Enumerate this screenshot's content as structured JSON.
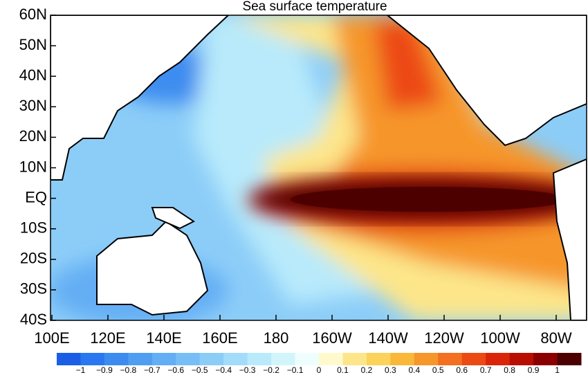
{
  "title": "Sea surface temperature",
  "y_axis": {
    "ticks": [
      "60N",
      "50N",
      "40N",
      "30N",
      "20N",
      "10N",
      "EQ",
      "10S",
      "20S",
      "30S",
      "40S"
    ]
  },
  "x_axis": {
    "ticks": [
      "100E",
      "120E",
      "140E",
      "160E",
      "180",
      "160W",
      "140W",
      "120W",
      "100W",
      "80W"
    ]
  },
  "colorbar": {
    "labels": [
      "−1",
      "−0.9",
      "−0.8",
      "−0.7",
      "−0.6",
      "−0.5",
      "−0.4",
      "−0.3",
      "−0.2",
      "−0.1",
      "0",
      "0.1",
      "0.2",
      "0.3",
      "0.4",
      "0.5",
      "0.6",
      "0.7",
      "0.8",
      "0.9",
      "1"
    ],
    "colors": [
      "#1a5ee6",
      "#2a78f0",
      "#3c8cf0",
      "#4f9ef2",
      "#63aef4",
      "#78bef6",
      "#8ccdf8",
      "#a2dcfa",
      "#b8eafb",
      "#d2f5fc",
      "#eefefe",
      "#fffacd",
      "#fde68a",
      "#fbd35a",
      "#f9b83a",
      "#f6962b",
      "#f2701f",
      "#ec4a14",
      "#db2508",
      "#b80e02",
      "#8a0000",
      "#4d0000"
    ]
  }
}
